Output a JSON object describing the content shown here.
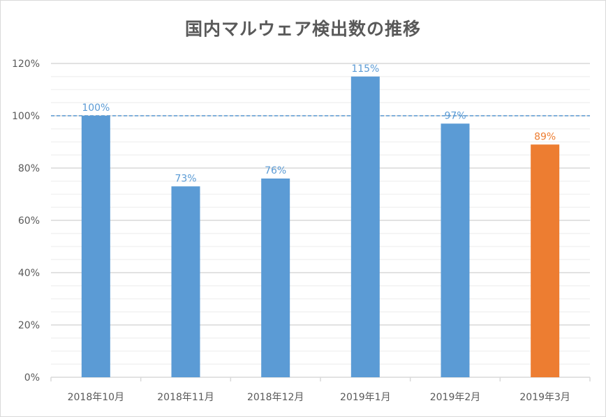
{
  "chart_data": {
    "type": "bar",
    "title": "国内マルウェア検出数の推移",
    "xlabel": "",
    "ylabel": "",
    "categories": [
      "2018年10月",
      "2018年11月",
      "2018年12月",
      "2019年1月",
      "2019年2月",
      "2019年3月"
    ],
    "values": [
      100,
      73,
      76,
      115,
      97,
      89
    ],
    "data_labels": [
      "100%",
      "73%",
      "76%",
      "115%",
      "97%",
      "89%"
    ],
    "bar_colors": [
      "#5b9bd5",
      "#5b9bd5",
      "#5b9bd5",
      "#5b9bd5",
      "#5b9bd5",
      "#ed7d31"
    ],
    "ylim": [
      0,
      120
    ],
    "y_ticks": [
      0,
      20,
      40,
      60,
      80,
      100,
      120
    ],
    "y_tick_labels": [
      "0%",
      "20%",
      "40%",
      "60%",
      "80%",
      "100%",
      "120%"
    ],
    "minor_grid_step": 5,
    "grid": true,
    "reference_line": {
      "value": 100,
      "style": "dashed",
      "color": "#5b9bd5"
    },
    "legend": null
  },
  "colors": {
    "primary": "#5b9bd5",
    "highlight": "#ed7d31",
    "text": "#595959",
    "major_grid": "#d9d9d9",
    "minor_grid": "#f2f2f2"
  }
}
